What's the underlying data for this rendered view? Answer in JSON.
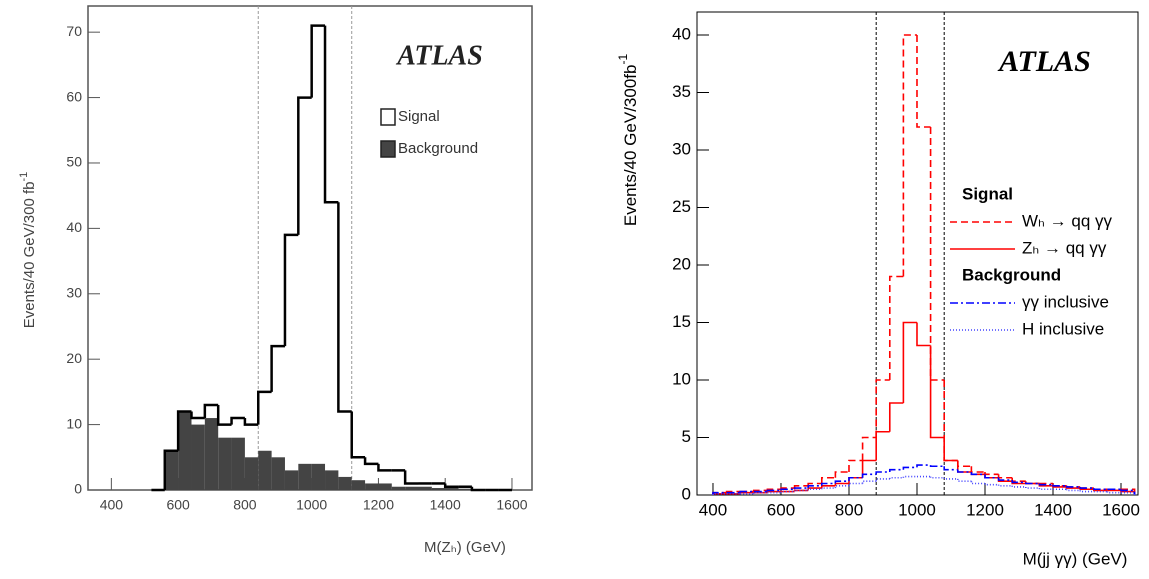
{
  "chart_data": [
    {
      "type": "histogram",
      "title": "ATLAS",
      "xlabel": "M(Zₕ) (GeV)",
      "ylabel": "Events/40 GeV/300 fb",
      "ylabel_superscript": "-1",
      "bins": [
        520,
        560,
        600,
        640,
        680,
        720,
        760,
        800,
        840,
        880,
        920,
        960,
        1000,
        1040,
        1080,
        1120,
        1160,
        1200,
        1240,
        1280,
        1320,
        1360,
        1400,
        1440,
        1480,
        1520,
        1560,
        1600
      ],
      "series": [
        {
          "name": "Signal",
          "color": "#000000",
          "style": "outline",
          "values": [
            0,
            6,
            12,
            11,
            13,
            10,
            11,
            10,
            15,
            22,
            39,
            60,
            71,
            44,
            12,
            5,
            4,
            3,
            3,
            1,
            1,
            1,
            0.5,
            0.5,
            0,
            0,
            0
          ]
        },
        {
          "name": "Background",
          "color": "#444444",
          "style": "filled",
          "values": [
            0,
            6,
            12,
            10,
            11,
            8,
            8,
            5,
            6,
            5,
            3,
            4,
            4,
            3,
            2,
            1.5,
            1,
            1,
            0.5,
            0.5,
            0.5,
            0.3,
            0.3,
            0.2,
            0,
            0,
            0
          ]
        }
      ],
      "cut_lines": [
        840,
        1120
      ],
      "xlim": [
        330,
        1660
      ],
      "xticks": [
        400,
        600,
        800,
        1000,
        1200,
        1400,
        1600
      ],
      "ylim": [
        0,
        74
      ],
      "yticks": [
        0,
        10,
        20,
        30,
        40,
        50,
        60,
        70
      ]
    },
    {
      "type": "histogram",
      "title": "ATLAS",
      "xlabel": "M(jj γγ) (GeV)",
      "ylabel": "Events/40 GeV/300fb",
      "ylabel_superscript": "-1",
      "legend_headers": [
        "Signal",
        "Background"
      ],
      "bins": [
        400,
        440,
        480,
        520,
        560,
        600,
        640,
        680,
        720,
        760,
        800,
        840,
        880,
        920,
        960,
        1000,
        1040,
        1080,
        1120,
        1160,
        1200,
        1240,
        1280,
        1320,
        1360,
        1400,
        1440,
        1480,
        1520,
        1560,
        1600,
        1640
      ],
      "series": [
        {
          "name": "Wₕ → qq γγ",
          "color": "#ff0000",
          "style": "dashed",
          "values": [
            0.2,
            0.3,
            0.3,
            0.4,
            0.5,
            0.6,
            0.8,
            1,
            1.5,
            2,
            3,
            5,
            10,
            19,
            40,
            32,
            10,
            3,
            2.5,
            2,
            1.8,
            1.5,
            1.2,
            1,
            1,
            0.8,
            0.7,
            0.6,
            0.5,
            0.5,
            0.5
          ]
        },
        {
          "name": "Zₕ → qq γγ",
          "color": "#ff0000",
          "style": "solid",
          "values": [
            0.1,
            0.1,
            0.2,
            0.2,
            0.3,
            0.3,
            0.4,
            0.6,
            0.8,
            1,
            1.5,
            3,
            5.5,
            8,
            15,
            13,
            5,
            3,
            2,
            1.8,
            1.5,
            1.2,
            1,
            1,
            0.8,
            0.7,
            0.6,
            0.5,
            0.4,
            0.4,
            0.3
          ]
        },
        {
          "name": "γγ inclusive",
          "color": "#0000ff",
          "style": "dashdot",
          "values": [
            0.2,
            0.2,
            0.3,
            0.3,
            0.4,
            0.5,
            0.6,
            0.8,
            1,
            1.2,
            1.5,
            1.8,
            2,
            2.2,
            2.4,
            2.6,
            2.5,
            2.2,
            2,
            1.8,
            1.5,
            1.3,
            1.1,
            1,
            0.9,
            0.8,
            0.7,
            0.6,
            0.5,
            0.5,
            0.4
          ]
        },
        {
          "name": "H inclusive",
          "color": "#4444ff",
          "style": "dotted",
          "values": [
            0.1,
            0.1,
            0.1,
            0.2,
            0.2,
            0.3,
            0.4,
            0.5,
            0.6,
            0.8,
            1,
            1.2,
            1.4,
            1.5,
            1.6,
            1.6,
            1.5,
            1.4,
            1.2,
            1,
            0.9,
            0.8,
            0.7,
            0.6,
            0.5,
            0.5,
            0.4,
            0.3,
            0.3,
            0.2,
            0.2
          ]
        }
      ],
      "cut_lines": [
        880,
        1080
      ],
      "xlim": [
        353,
        1650
      ],
      "xticks": [
        400,
        600,
        800,
        1000,
        1200,
        1400,
        1600
      ],
      "ylim": [
        0,
        42
      ],
      "yticks": [
        0,
        5,
        10,
        15,
        20,
        25,
        30,
        35,
        40
      ]
    }
  ]
}
